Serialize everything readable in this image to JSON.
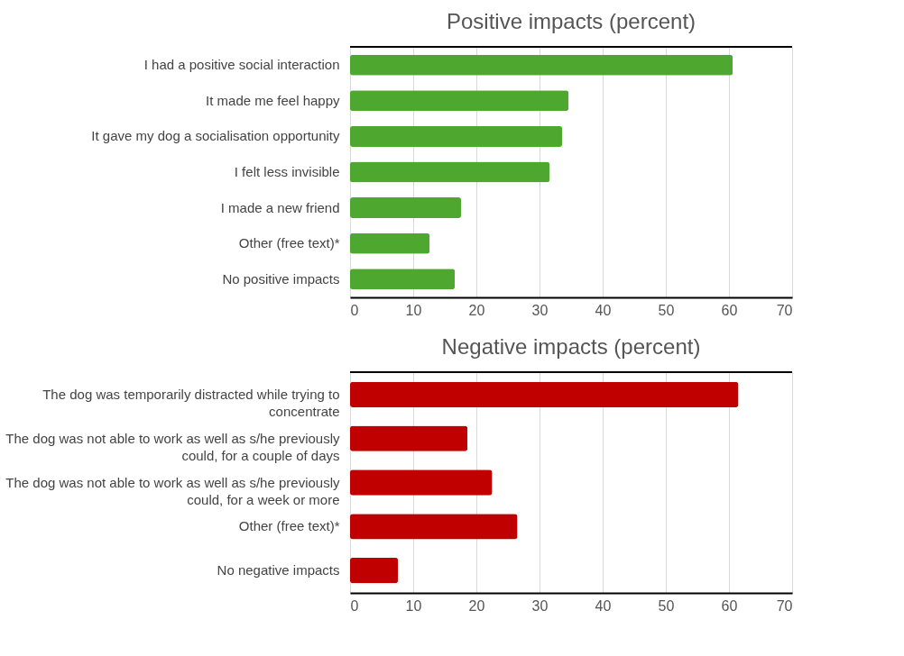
{
  "chart_data": [
    {
      "type": "bar",
      "orientation": "horizontal",
      "title": "Positive impacts (percent)",
      "categories": [
        "I had a positive social interaction",
        "It made me feel happy",
        "It gave my dog a socialisation opportunity",
        "I felt less invisible",
        "I made a new friend",
        "Other (free text)*",
        "No positive impacts"
      ],
      "values": [
        60.6,
        34.6,
        33.6,
        31.6,
        17.6,
        12.6,
        16.6
      ],
      "color": "#4ea72e",
      "xlim": [
        0,
        70
      ],
      "xticks": [
        0,
        10,
        20,
        30,
        40,
        50,
        60,
        70
      ],
      "grid": "x"
    },
    {
      "type": "bar",
      "orientation": "horizontal",
      "title": "Negative impacts (percent)",
      "categories": [
        "The dog was temporarily distracted while trying to concentrate",
        "The dog was not able to work as well as s/he previously could, for a couple of days",
        "The dog was not able to work as well as s/he previously could, for a week or more",
        "Other (free text)*",
        "No negative impacts"
      ],
      "values": [
        61.5,
        18.6,
        22.5,
        26.5,
        7.6
      ],
      "color": "#c00000",
      "xlim": [
        0,
        70
      ],
      "xticks": [
        0,
        10,
        20,
        30,
        40,
        50,
        60,
        70
      ],
      "grid": "x"
    }
  ]
}
